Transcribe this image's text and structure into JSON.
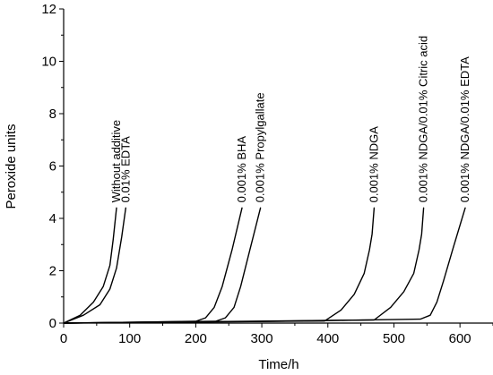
{
  "chart_data": {
    "type": "line",
    "title": "",
    "xlabel": "Time/h",
    "ylabel": "Peroxide units",
    "xlim": [
      0,
      650
    ],
    "ylim": [
      0,
      12
    ],
    "xticks": [
      0,
      100,
      200,
      300,
      400,
      500,
      600
    ],
    "yticks": [
      0,
      2,
      4,
      6,
      8,
      10,
      12
    ],
    "grid": false,
    "legend": "none (labels placed along curves)",
    "series": [
      {
        "name": "Without additive",
        "points": [
          [
            0,
            0
          ],
          [
            25,
            0.3
          ],
          [
            45,
            0.8
          ],
          [
            60,
            1.4
          ],
          [
            70,
            2.2
          ],
          [
            75,
            3.2
          ],
          [
            80,
            4.4
          ]
        ]
      },
      {
        "name": "0.01% EDTA",
        "points": [
          [
            0,
            0
          ],
          [
            30,
            0.3
          ],
          [
            55,
            0.7
          ],
          [
            70,
            1.3
          ],
          [
            80,
            2.1
          ],
          [
            88,
            3.3
          ],
          [
            94,
            4.4
          ]
        ]
      },
      {
        "name": "0.001% BHA",
        "points": [
          [
            0,
            0
          ],
          [
            100,
            0.03
          ],
          [
            200,
            0.07
          ],
          [
            215,
            0.2
          ],
          [
            228,
            0.6
          ],
          [
            240,
            1.4
          ],
          [
            255,
            2.8
          ],
          [
            270,
            4.4
          ]
        ]
      },
      {
        "name": "0.001% Propylgallate",
        "points": [
          [
            0,
            0
          ],
          [
            100,
            0.03
          ],
          [
            230,
            0.07
          ],
          [
            245,
            0.2
          ],
          [
            258,
            0.6
          ],
          [
            268,
            1.4
          ],
          [
            282,
            2.8
          ],
          [
            298,
            4.4
          ]
        ]
      },
      {
        "name": "0.001% NDGA",
        "points": [
          [
            0,
            0
          ],
          [
            200,
            0.05
          ],
          [
            395,
            0.08
          ],
          [
            420,
            0.5
          ],
          [
            440,
            1.1
          ],
          [
            455,
            1.9
          ],
          [
            463,
            2.8
          ],
          [
            467,
            3.4
          ],
          [
            470,
            4.4
          ]
        ]
      },
      {
        "name": "0.001% NDGA/0.01% Citric acid",
        "points": [
          [
            0,
            0
          ],
          [
            200,
            0.05
          ],
          [
            470,
            0.12
          ],
          [
            495,
            0.6
          ],
          [
            515,
            1.2
          ],
          [
            530,
            1.9
          ],
          [
            538,
            2.8
          ],
          [
            542,
            3.4
          ],
          [
            545,
            4.4
          ]
        ]
      },
      {
        "name": "0.001% NDGA/0.01% EDTA",
        "points": [
          [
            0,
            0
          ],
          [
            300,
            0.06
          ],
          [
            540,
            0.15
          ],
          [
            555,
            0.3
          ],
          [
            565,
            0.8
          ],
          [
            575,
            1.6
          ],
          [
            590,
            2.9
          ],
          [
            608,
            4.4
          ]
        ]
      }
    ]
  }
}
